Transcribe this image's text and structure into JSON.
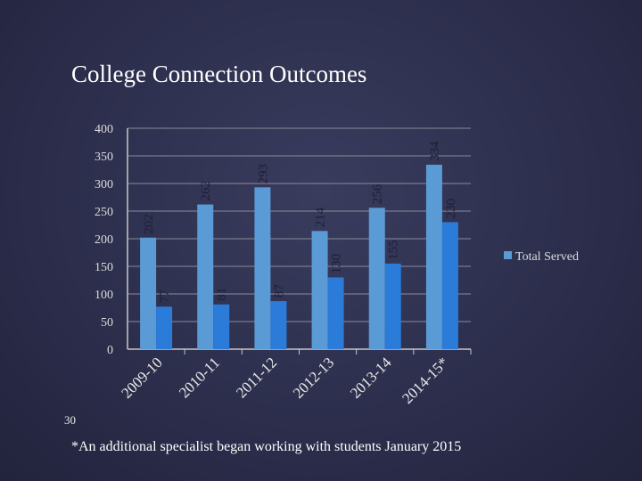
{
  "chart_data": {
    "type": "bar",
    "title": "College Connection Outcomes",
    "categories": [
      "2009-10",
      "2010-11",
      "2011-12",
      "2012-13",
      "2013-14",
      "2014-15*"
    ],
    "series": [
      {
        "name": "Total Served",
        "color": "#5a9bd5",
        "values": [
          202,
          262,
          293,
          214,
          256,
          334
        ]
      },
      {
        "color": "#2b7bd8",
        "values": [
          77,
          81,
          87,
          130,
          155,
          230
        ]
      }
    ],
    "ylim": [
      0,
      400
    ],
    "yticks": [
      0,
      50,
      100,
      150,
      200,
      250,
      300,
      350,
      400
    ],
    "grid": true,
    "legend": "right"
  },
  "slide": {
    "number": 30,
    "footnote": "*An additional specialist began working with students January 2015"
  }
}
